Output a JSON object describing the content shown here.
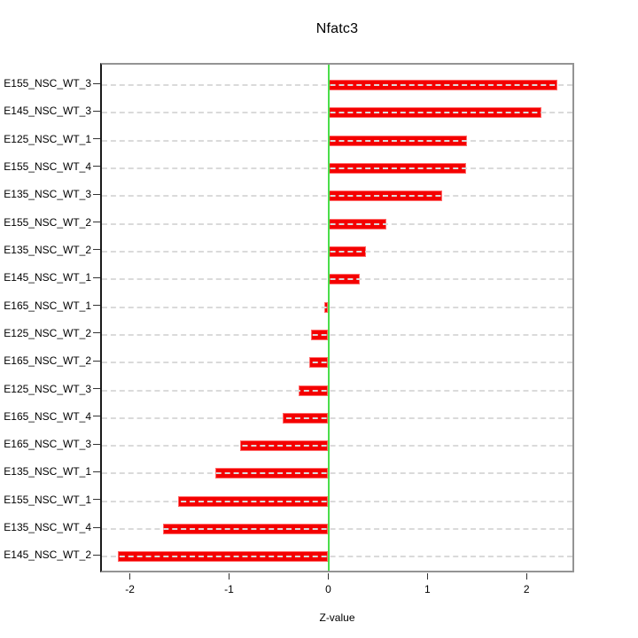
{
  "chart_data": {
    "type": "bar",
    "orientation": "horizontal",
    "title": "Nfatc3",
    "xlabel": "Z-value",
    "ylabel": "",
    "categories": [
      "E155_NSC_WT_3",
      "E145_NSC_WT_3",
      "E125_NSC_WT_1",
      "E155_NSC_WT_4",
      "E135_NSC_WT_3",
      "E155_NSC_WT_2",
      "E135_NSC_WT_2",
      "E145_NSC_WT_1",
      "E165_NSC_WT_1",
      "E125_NSC_WT_2",
      "E165_NSC_WT_2",
      "E125_NSC_WT_3",
      "E165_NSC_WT_4",
      "E165_NSC_WT_3",
      "E135_NSC_WT_1",
      "E155_NSC_WT_1",
      "E135_NSC_WT_4",
      "E145_NSC_WT_2"
    ],
    "values": [
      2.31,
      2.15,
      1.4,
      1.39,
      1.15,
      0.59,
      0.38,
      0.32,
      -0.04,
      -0.17,
      -0.19,
      -0.3,
      -0.46,
      -0.89,
      -1.14,
      -1.51,
      -1.67,
      -2.12
    ],
    "x_ticks": [
      -2,
      -1,
      0,
      1,
      2
    ],
    "xlim": [
      -2.3,
      2.48
    ],
    "grid": true,
    "grid_style": "dashed",
    "legend": "none",
    "colors": {
      "bar": "#f40000",
      "bar_edge": "#ff6b6b",
      "zero_line": "#4ade4a",
      "grid": "#dadada",
      "box_border": "#949494",
      "axis": "#1a1a1a",
      "background": "#ffffff"
    }
  }
}
